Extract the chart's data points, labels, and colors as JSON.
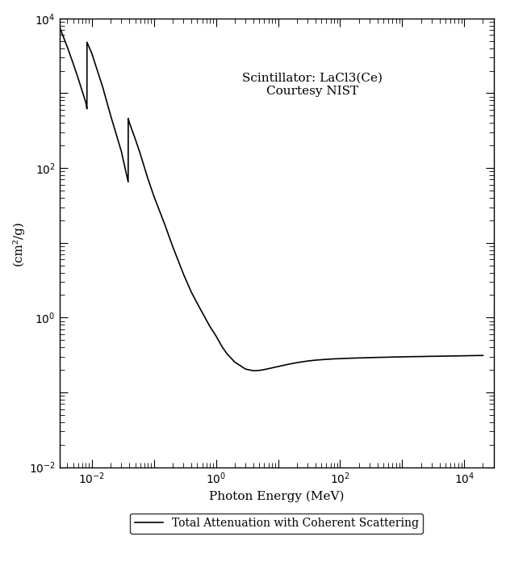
{
  "annotation": "Scintillator: LaCl3(Ce)\nCourtesy NIST",
  "xlabel": "Photon Energy (MeV)",
  "ylabel": "(cm²/g)",
  "legend_label": "Total Attenuation with Coherent Scattering",
  "xlim": [
    0.003,
    30000.0
  ],
  "ylim": [
    0.01,
    10000.0
  ],
  "energy": [
    0.003,
    0.004,
    0.005,
    0.006,
    0.008,
    0.00834,
    0.00836,
    0.01,
    0.015,
    0.02,
    0.03,
    0.0385,
    0.0386,
    0.04,
    0.05,
    0.06,
    0.08,
    0.1,
    0.15,
    0.2,
    0.3,
    0.4,
    0.5,
    0.6,
    0.8,
    1.0,
    1.25,
    1.5,
    2.0,
    3.0,
    4.0,
    5.0,
    6.0,
    8.0,
    10.0,
    15.0,
    20.0,
    30.0,
    40.0,
    50.0,
    60.0,
    80.0,
    100.0,
    150.0,
    200.0,
    300.0,
    400.0,
    500.0,
    600.0,
    800.0,
    1000.0,
    1500.0,
    2000.0,
    3000.0,
    4000.0,
    5000.0,
    6000.0,
    8000.0,
    10000.0,
    15000.0,
    20000.0
  ],
  "mu_rho": [
    7800.0,
    4200.0,
    2500.0,
    1600.0,
    750.0,
    620.0,
    4800.0,
    3400.0,
    1200.0,
    510.0,
    165.0,
    65.0,
    460.0,
    410.0,
    245.0,
    157.0,
    72.0,
    42.0,
    17.5,
    9.0,
    3.8,
    2.2,
    1.55,
    1.17,
    0.76,
    0.57,
    0.41,
    0.33,
    0.255,
    0.205,
    0.195,
    0.197,
    0.202,
    0.213,
    0.222,
    0.239,
    0.25,
    0.263,
    0.27,
    0.274,
    0.277,
    0.281,
    0.283,
    0.287,
    0.289,
    0.292,
    0.294,
    0.295,
    0.296,
    0.298,
    0.299,
    0.301,
    0.302,
    0.304,
    0.305,
    0.306,
    0.307,
    0.308,
    0.309,
    0.311,
    0.312
  ],
  "line_color": "#000000",
  "line_width": 1.2,
  "background_color": "#ffffff",
  "annotation_fontsize": 11,
  "axis_fontsize": 11,
  "legend_fontsize": 10
}
